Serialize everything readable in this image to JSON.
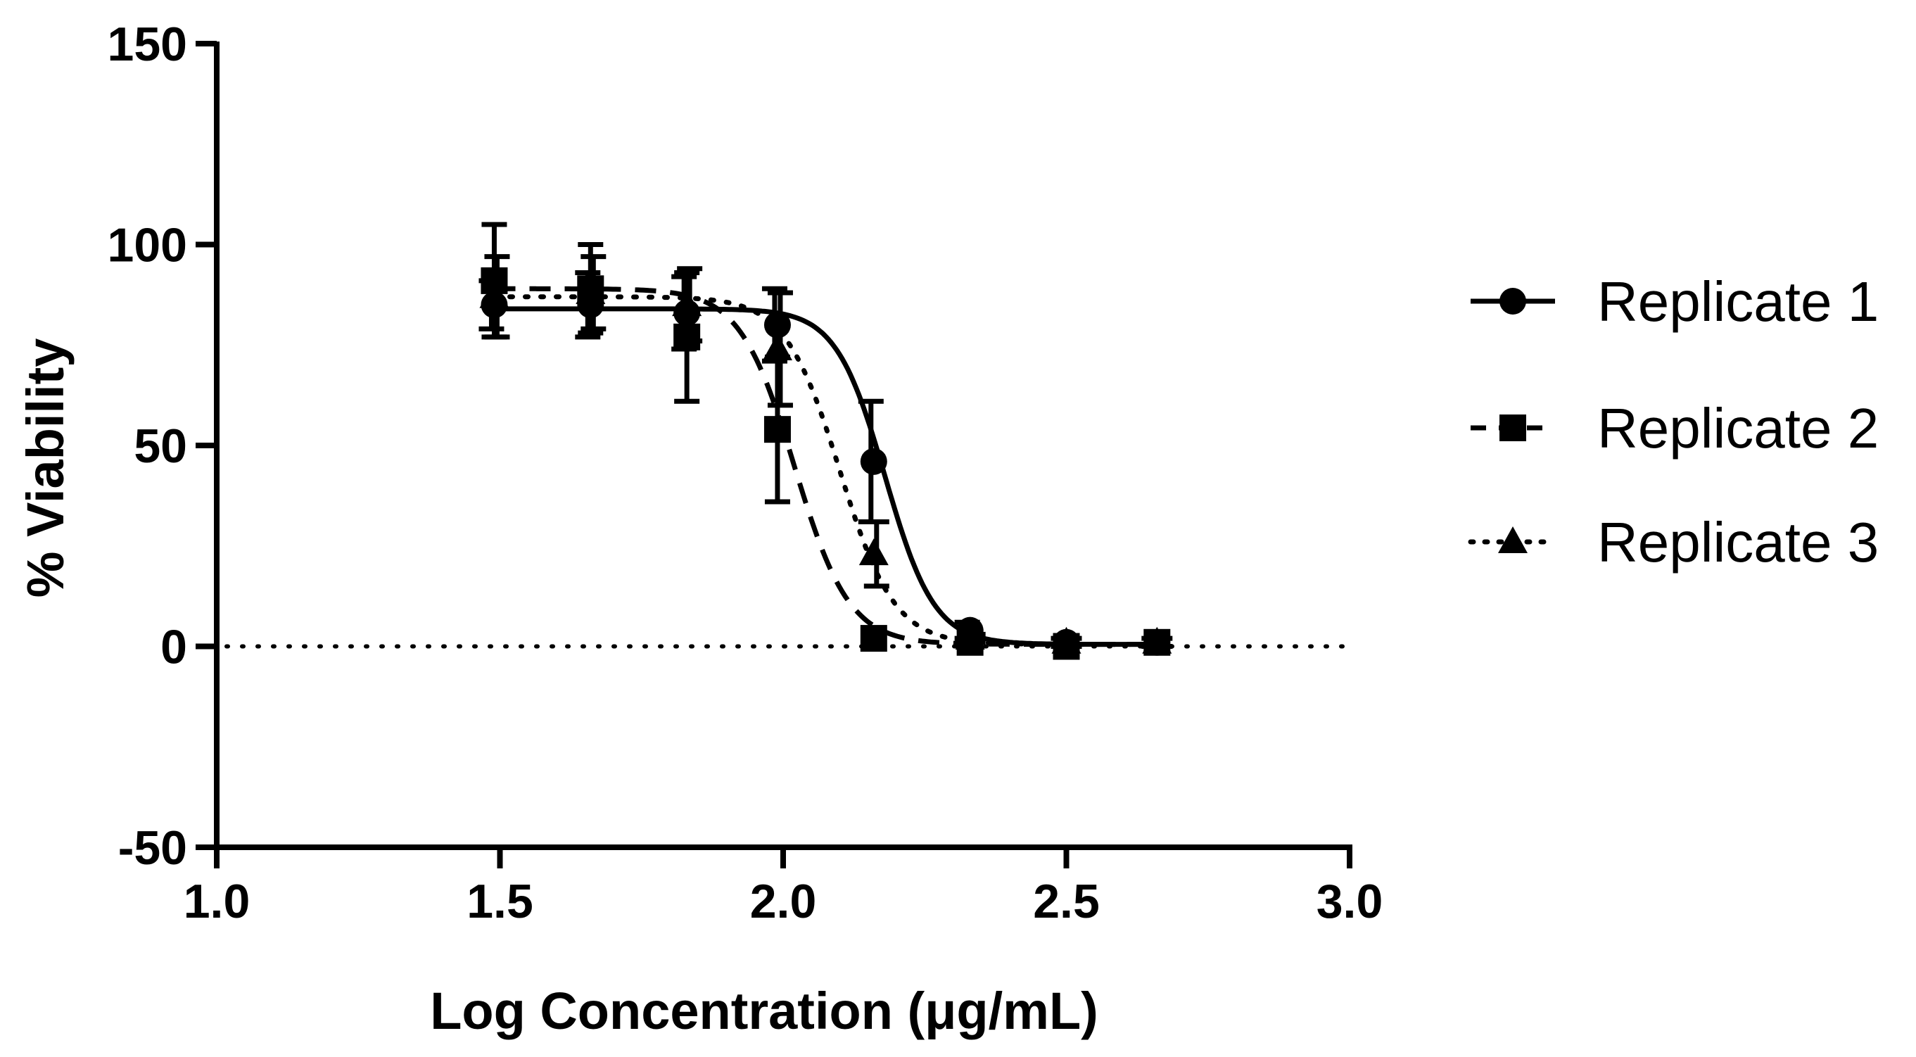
{
  "chart_data": {
    "type": "line",
    "title": "",
    "xlabel": "Log Concentration (μg/mL)",
    "ylabel": "% Viability",
    "xlim": [
      1.0,
      3.0
    ],
    "ylim": [
      -50,
      150
    ],
    "xticks": [
      1.0,
      1.5,
      2.0,
      2.5,
      3.0
    ],
    "yticks": [
      -50,
      0,
      50,
      100,
      150
    ],
    "xtick_labels": [
      "1.0",
      "1.5",
      "2.0",
      "2.5",
      "3.0"
    ],
    "ytick_labels": [
      "-50",
      "0",
      "50",
      "100",
      "150"
    ],
    "legend_position": "right",
    "reference_line": {
      "y": 0,
      "style": "dotted"
    },
    "series": [
      {
        "name": "Replicate 1",
        "marker": "circle",
        "line_style": "solid",
        "x": [
          1.49,
          1.66,
          1.83,
          1.99,
          2.16,
          2.33,
          2.5,
          2.66
        ],
        "y": [
          85,
          85,
          83,
          80,
          46,
          4,
          1,
          1
        ],
        "error": [
          6,
          8,
          9,
          9,
          15,
          2,
          1,
          1
        ],
        "fit": {
          "top": 84,
          "bottom": 0.5,
          "log_ic50": 2.18,
          "hill": 10.0
        }
      },
      {
        "name": "Replicate 2",
        "marker": "square",
        "line_style": "dashed",
        "x": [
          1.49,
          1.66,
          1.83,
          1.99,
          2.16,
          2.33,
          2.5,
          2.66
        ],
        "y": [
          91,
          89,
          77,
          54,
          2,
          1,
          0,
          1
        ],
        "error": [
          14,
          11,
          16,
          18,
          1,
          1,
          1,
          1
        ],
        "fit": {
          "top": 89,
          "bottom": 0.5,
          "log_ic50": 2.02,
          "hill": 9.0
        }
      },
      {
        "name": "Replicate 3",
        "marker": "triangle",
        "line_style": "dotted",
        "x": [
          1.49,
          1.66,
          1.83,
          1.99,
          2.16,
          2.33,
          2.5,
          2.66
        ],
        "y": [
          87,
          88,
          85,
          74,
          23,
          2,
          1,
          1
        ],
        "error": [
          10,
          9,
          9,
          14,
          8,
          1,
          1,
          1
        ],
        "fit": {
          "top": 87,
          "bottom": 0.5,
          "log_ic50": 2.1,
          "hill": 9.0
        }
      }
    ]
  }
}
